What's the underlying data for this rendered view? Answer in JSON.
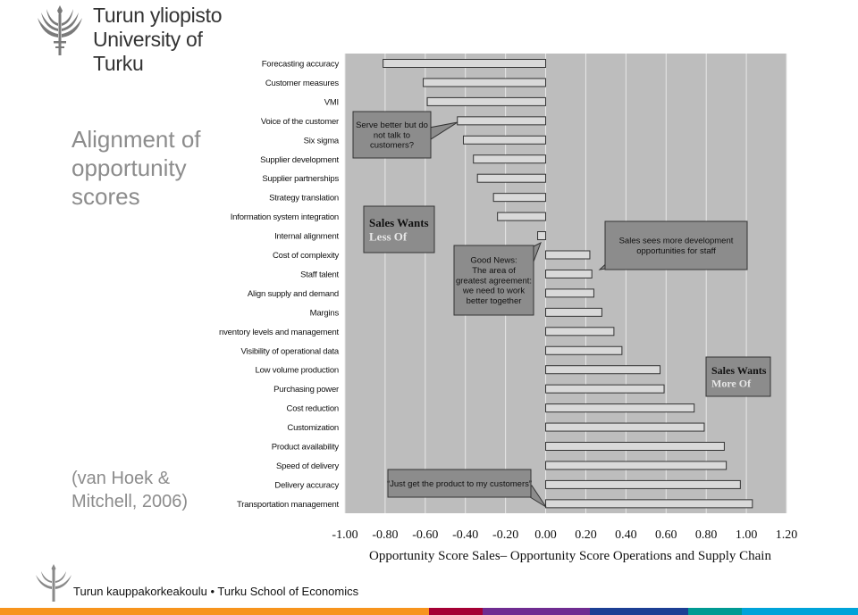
{
  "header": {
    "university_fi": "Turun yliopisto",
    "university_en": "University of Turku",
    "emblem_icon": "university-torch-emblem-icon"
  },
  "slide": {
    "title": "Alignment of opportunity scores",
    "citation": "(van Hoek & Mitchell, 2006)"
  },
  "footer": {
    "text": "Turun kauppakorkeakoulu • Turku School of Economics",
    "emblem_icon": "university-torch-emblem-icon",
    "stripe_colors": [
      "#f7941d",
      "#f7941d",
      "#a50034",
      "#6f2c91",
      "#1c3f94",
      "#009a93",
      "#00a3d9"
    ]
  },
  "chart_data": {
    "type": "bar",
    "orientation": "horizontal",
    "categories": [
      "Forecasting accuracy",
      "Customer measures",
      "VMI",
      "Voice of the customer",
      "Six sigma",
      "Supplier development",
      "Supplier partnerships",
      "Strategy translation",
      "Information system integration",
      "Internal alignment",
      "Cost of complexity",
      "Staff talent",
      "Align supply and demand",
      "Margins",
      "Inventory levels and management",
      "Visibility of operational data",
      "Low volume production",
      "Purchasing power",
      "Cost reduction",
      "Customization",
      "Product availability",
      "Speed of delivery",
      "Delivery accuracy",
      "Transportation management"
    ],
    "values": [
      -0.81,
      -0.61,
      -0.59,
      -0.44,
      -0.41,
      -0.36,
      -0.34,
      -0.26,
      -0.24,
      -0.04,
      0.22,
      0.23,
      0.24,
      0.28,
      0.34,
      0.38,
      0.57,
      0.59,
      0.74,
      0.79,
      0.89,
      0.9,
      0.97,
      1.03
    ],
    "xlim": [
      -1.0,
      1.2
    ],
    "xticks": [
      "-1.00",
      "-0.80",
      "-0.60",
      "-0.40",
      "-0.20",
      "0.00",
      "0.20",
      "0.40",
      "0.60",
      "0.80",
      "1.00",
      "1.20"
    ],
    "xlabel": "Opportunity Score Sales– Opportunity Score Operations and Supply Chain",
    "ylabel": "",
    "grid": true,
    "bar_color": "#d9d9d9",
    "bar_border": "#333333",
    "plot_background": "#bdbdbd",
    "annotations": [
      {
        "id": "serve-better",
        "lines": [
          "Serve better but do",
          "not talk to",
          "customers?"
        ]
      },
      {
        "id": "sales-wants-less",
        "lines": [
          "Sales Wants",
          "Less Of"
        ]
      },
      {
        "id": "good-news",
        "lines": [
          "Good News:",
          "The area of",
          "greatest agreement:",
          "we need to work",
          "better together"
        ]
      },
      {
        "id": "sales-sees-more",
        "lines": [
          "Sales sees more development",
          "opportunities for staff"
        ]
      },
      {
        "id": "sales-wants-more",
        "lines": [
          "Sales Wants",
          "More Of"
        ]
      },
      {
        "id": "just-get-product",
        "lines": [
          "“Just get the product to my customers”"
        ]
      }
    ]
  }
}
